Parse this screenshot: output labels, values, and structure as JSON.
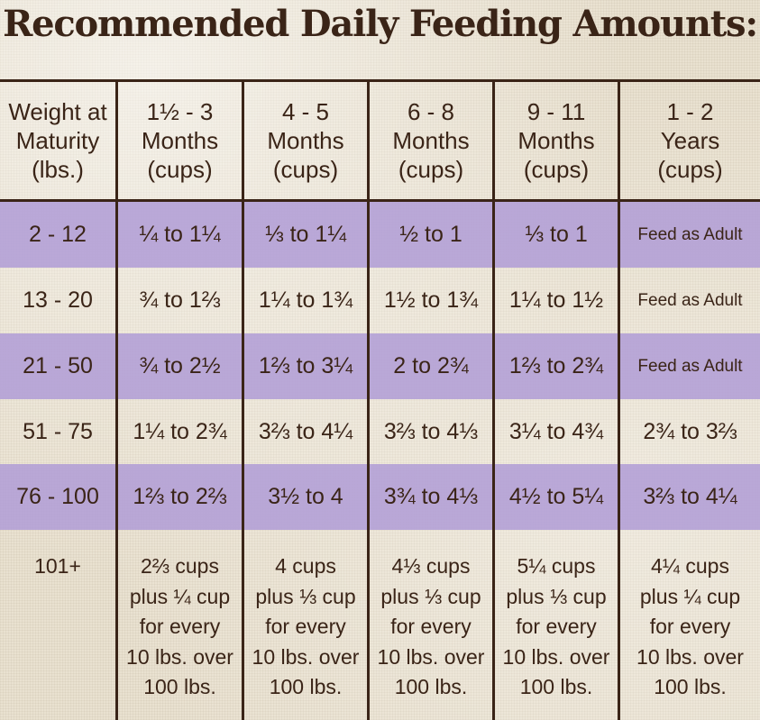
{
  "title": "Recommended Daily Feeding Amounts:",
  "headers": [
    [
      "Weight at",
      "Maturity",
      "(lbs.)"
    ],
    [
      "1½ - 3",
      "Months",
      "(cups)"
    ],
    [
      "4 - 5",
      "Months",
      "(cups)"
    ],
    [
      "6 - 8",
      "Months",
      "(cups)"
    ],
    [
      "9 - 11",
      "Months",
      "(cups)"
    ],
    [
      "1 - 2",
      "Years",
      "(cups)"
    ]
  ],
  "rows": [
    [
      "2 - 12",
      "¼ to 1¼",
      "⅓ to 1¼",
      "½ to 1",
      "⅓ to 1",
      "Feed as Adult"
    ],
    [
      "13 - 20",
      "¾ to 1⅔",
      "1¼ to 1¾",
      "1½ to 1¾",
      "1¼ to 1½",
      "Feed as Adult"
    ],
    [
      "21 - 50",
      "¾ to 2½",
      "1⅔ to 3¼",
      "2 to 2¾",
      "1⅔ to 2¾",
      "Feed as Adult"
    ],
    [
      "51 - 75",
      "1¼ to 2¾",
      "3⅔ to 4¼",
      "3⅔ to 4⅓",
      "3¼ to 4¾",
      "2¾ to 3⅔"
    ],
    [
      "76 - 100",
      "1⅔ to 2⅔",
      "3½ to 4",
      "3¾ to 4⅓",
      "4½ to 5¼",
      "3⅔ to 4¼"
    ]
  ],
  "last_row": {
    "weight": "101+",
    "cells": [
      [
        "2⅔ cups",
        "plus ¼ cup",
        "for every",
        "10 lbs. over",
        "100 lbs."
      ],
      [
        "4 cups",
        "plus ⅓ cup",
        "for every",
        "10 lbs. over",
        "100 lbs."
      ],
      [
        "4⅓ cups",
        "plus ⅓ cup",
        "for every",
        "10 lbs. over",
        "100 lbs."
      ],
      [
        "5¼ cups",
        "plus ⅓ cup",
        "for every",
        "10 lbs. over",
        "100 lbs."
      ],
      [
        "4¼ cups",
        "plus ¼ cup",
        "for every",
        "10 lbs. over",
        "100 lbs."
      ]
    ]
  },
  "colors": {
    "text": "#3a2417",
    "band": "#b29ed6",
    "background": "#e9e1d0"
  }
}
